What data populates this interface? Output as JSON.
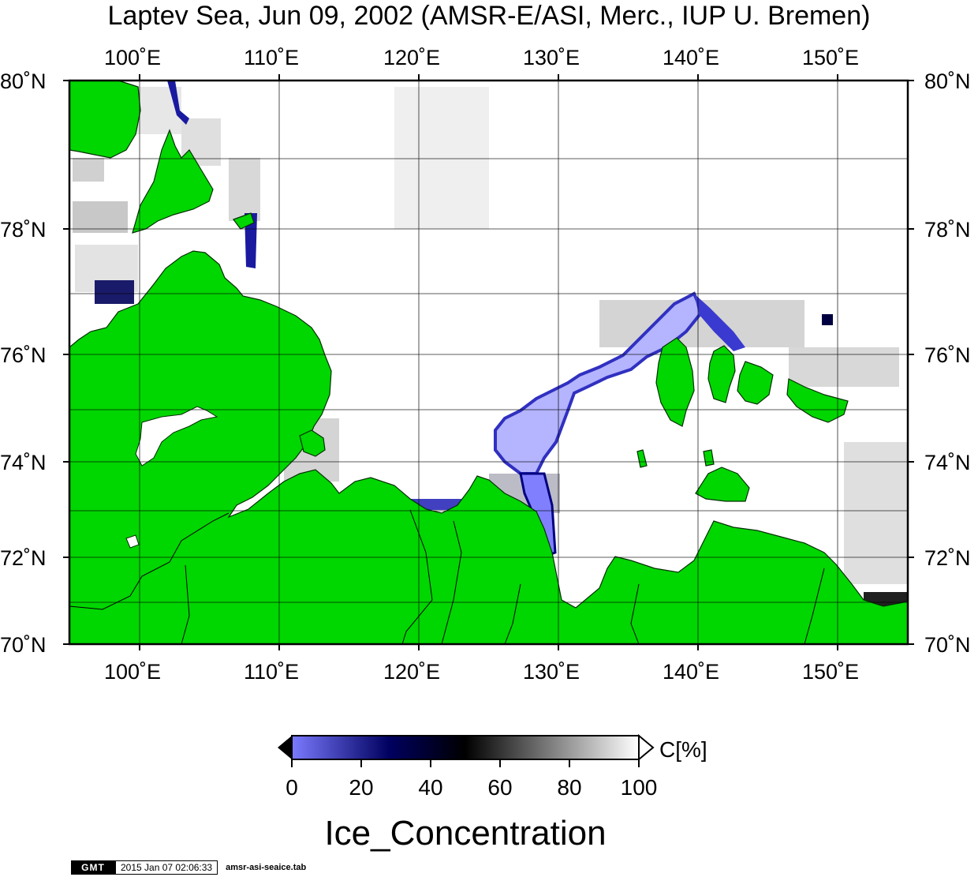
{
  "title": "Laptev Sea, Jun 09, 2002 (AMSR-E/ASI, Merc., IUP U. Bremen)",
  "map": {
    "lon_labels": [
      "100˚E",
      "110˚E",
      "120˚E",
      "130˚E",
      "140˚E",
      "150˚E"
    ],
    "lat_labels": [
      "80˚N",
      "78˚N",
      "76˚N",
      "74˚N",
      "72˚N",
      "70˚N"
    ],
    "colors": {
      "land": "#00d600",
      "ocean_open": "#ffffff",
      "frame": "#000000"
    }
  },
  "colorbar": {
    "unit": "C[%]",
    "ticks": [
      "0",
      "20",
      "40",
      "60",
      "80",
      "100"
    ],
    "title": "Ice_Concentration",
    "colors": [
      "#7a7aff",
      "#000060",
      "#000000",
      "#808080",
      "#ffffff"
    ]
  },
  "footer": {
    "logo": "GMT",
    "timestamp": "2015 Jan 07 02:06:33",
    "command": "amsr-asi-seaice.tab"
  }
}
